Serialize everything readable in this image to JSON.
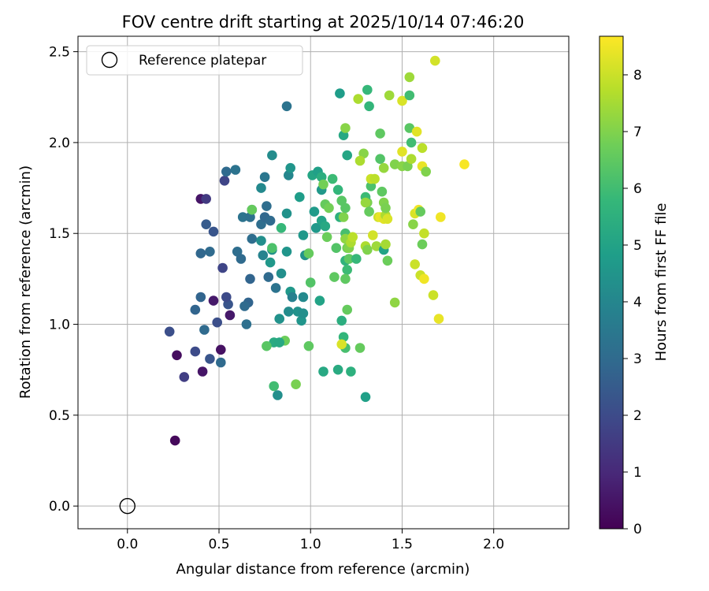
{
  "chart_data": {
    "type": "scatter",
    "title": "FOV centre drift starting at 2025/10/14 07:46:20",
    "xlabel": "Angular distance from reference (arcmin)",
    "ylabel": "Rotation from reference (arcmin)",
    "xlim": [
      -0.27,
      2.41
    ],
    "ylim": [
      -0.125,
      2.585
    ],
    "xticks": [
      0.0,
      0.5,
      1.0,
      1.5,
      2.0
    ],
    "xtick_labels": [
      "0.0",
      "0.5",
      "1.0",
      "1.5",
      "2.0"
    ],
    "yticks": [
      0.0,
      0.5,
      1.0,
      1.5,
      2.0,
      2.5
    ],
    "ytick_labels": [
      "0.0",
      "0.5",
      "1.0",
      "1.5",
      "2.0",
      "2.5"
    ],
    "grid": true,
    "legend": {
      "position": "top-left",
      "entries": [
        {
          "label": "Reference platepar",
          "marker": "open-circle"
        }
      ]
    },
    "reference_point": {
      "x": 0.0,
      "y": 0.0
    },
    "colorbar": {
      "label": "Hours from first FF file",
      "range": [
        0,
        8.68
      ],
      "ticks": [
        0,
        1,
        2,
        3,
        4,
        5,
        6,
        7,
        8
      ],
      "tick_labels": [
        "0",
        "1",
        "2",
        "3",
        "4",
        "5",
        "6",
        "7",
        "8"
      ],
      "colormap": [
        "#440154",
        "#482878",
        "#3e4989",
        "#31688e",
        "#26828e",
        "#1f9e89",
        "#35b779",
        "#6ece58",
        "#b5de2b",
        "#fde725"
      ]
    },
    "series": [
      {
        "name": "FOV centre",
        "points": [
          [
            0.26,
            0.36,
            0.2
          ],
          [
            0.27,
            0.83,
            0.3
          ],
          [
            0.31,
            0.71,
            1.6
          ],
          [
            0.23,
            0.96,
            2.1
          ],
          [
            0.37,
            0.85,
            2.0
          ],
          [
            0.41,
            0.74,
            0.5
          ],
          [
            0.45,
            0.81,
            2.3
          ],
          [
            0.51,
            0.86,
            0.4
          ],
          [
            0.51,
            0.79,
            3.0
          ],
          [
            0.42,
            0.97,
            3.0
          ],
          [
            0.49,
            1.01,
            2.1
          ],
          [
            0.37,
            1.08,
            2.8
          ],
          [
            0.4,
            1.15,
            2.8
          ],
          [
            0.47,
            1.13,
            0.6
          ],
          [
            0.55,
            1.11,
            2.3
          ],
          [
            0.56,
            1.05,
            0.6
          ],
          [
            0.54,
            1.15,
            2.0
          ],
          [
            0.65,
            1.0,
            3.2
          ],
          [
            0.66,
            1.12,
            2.8
          ],
          [
            0.64,
            1.1,
            3.0
          ],
          [
            0.67,
            1.25,
            2.8
          ],
          [
            0.52,
            1.31,
            1.8
          ],
          [
            0.4,
            1.39,
            2.9
          ],
          [
            0.45,
            1.4,
            3.0
          ],
          [
            0.47,
            1.51,
            2.3
          ],
          [
            0.43,
            1.55,
            2.5
          ],
          [
            0.4,
            1.69,
            0.5
          ],
          [
            0.43,
            1.69,
            1.5
          ],
          [
            0.53,
            1.79,
            1.8
          ],
          [
            0.54,
            1.84,
            3.0
          ],
          [
            0.59,
            1.85,
            3.3
          ],
          [
            0.6,
            1.4,
            3.1
          ],
          [
            0.62,
            1.36,
            3.0
          ],
          [
            0.63,
            1.59,
            3.3
          ],
          [
            0.67,
            1.59,
            3.2
          ],
          [
            0.68,
            1.63,
            3.4
          ],
          [
            0.68,
            1.47,
            3.1
          ],
          [
            0.73,
            1.55,
            3.1
          ],
          [
            0.75,
            1.59,
            2.9
          ],
          [
            0.76,
            1.65,
            3.1
          ],
          [
            0.78,
            1.57,
            3.0
          ],
          [
            0.73,
            1.75,
            4.1
          ],
          [
            0.75,
            1.81,
            3.4
          ],
          [
            0.79,
            1.93,
            4.2
          ],
          [
            0.87,
            2.2,
            3.3
          ],
          [
            0.73,
            1.46,
            4.3
          ],
          [
            0.74,
            1.38,
            3.9
          ],
          [
            0.77,
            1.26,
            3.0
          ],
          [
            0.78,
            1.34,
            4.6
          ],
          [
            0.79,
            1.41,
            4.4
          ],
          [
            0.81,
            1.2,
            3.3
          ],
          [
            0.84,
            1.28,
            4.3
          ],
          [
            0.87,
            1.4,
            4.5
          ],
          [
            0.87,
            1.61,
            4.4
          ],
          [
            0.88,
            1.82,
            4.0
          ],
          [
            0.89,
            1.86,
            4.5
          ],
          [
            0.83,
            1.03,
            4.4
          ],
          [
            0.88,
            1.07,
            4.2
          ],
          [
            0.89,
            1.18,
            4.6
          ],
          [
            0.9,
            1.15,
            3.8
          ],
          [
            0.93,
            1.07,
            4.4
          ],
          [
            0.95,
            1.02,
            4.5
          ],
          [
            0.96,
            1.06,
            4.3
          ],
          [
            0.96,
            1.15,
            4.1
          ],
          [
            0.94,
            1.7,
            4.8
          ],
          [
            0.96,
            1.49,
            4.6
          ],
          [
            0.97,
            1.38,
            4.4
          ],
          [
            0.99,
            1.39,
            6.6
          ],
          [
            1.0,
            1.23,
            6.3
          ],
          [
            1.01,
            1.82,
            5.1
          ],
          [
            1.02,
            1.62,
            4.7
          ],
          [
            1.03,
            1.53,
            4.6
          ],
          [
            1.04,
            1.84,
            4.9
          ],
          [
            1.05,
            1.13,
            5.0
          ],
          [
            1.06,
            1.81,
            5.4
          ],
          [
            1.06,
            1.74,
            4.6
          ],
          [
            1.06,
            1.57,
            5.0
          ],
          [
            1.08,
            1.54,
            5.2
          ],
          [
            1.07,
            1.77,
            6.8
          ],
          [
            1.08,
            1.66,
            6.6
          ],
          [
            1.09,
            1.48,
            6.7
          ],
          [
            1.1,
            1.64,
            6.8
          ],
          [
            1.12,
            1.8,
            5.9
          ],
          [
            1.13,
            1.26,
            6.5
          ],
          [
            1.14,
            1.42,
            6.3
          ],
          [
            1.15,
            1.74,
            5.7
          ],
          [
            1.16,
            1.59,
            5.5
          ],
          [
            1.17,
            1.68,
            6.4
          ],
          [
            1.18,
            1.59,
            7.0
          ],
          [
            1.19,
            1.64,
            6.4
          ],
          [
            1.19,
            1.5,
            6.1
          ],
          [
            1.19,
            1.35,
            5.6
          ],
          [
            1.2,
            1.3,
            5.9
          ],
          [
            1.19,
            1.25,
            6.5
          ],
          [
            1.2,
            1.42,
            6.8
          ],
          [
            1.21,
            1.42,
            7.0
          ],
          [
            1.21,
            1.36,
            6.5
          ],
          [
            1.19,
            1.47,
            7.2
          ],
          [
            1.22,
            1.45,
            7.6
          ],
          [
            1.23,
            1.48,
            7.8
          ],
          [
            1.25,
            1.36,
            5.8
          ],
          [
            1.15,
            0.75,
            5.3
          ],
          [
            1.17,
            1.02,
            5.4
          ],
          [
            1.18,
            0.93,
            5.7
          ],
          [
            1.19,
            0.87,
            6.1
          ],
          [
            1.17,
            0.89,
            8.2
          ],
          [
            1.2,
            1.08,
            6.6
          ],
          [
            1.07,
            0.74,
            5.2
          ],
          [
            1.22,
            0.74,
            5.5
          ],
          [
            1.3,
            0.6,
            4.9
          ],
          [
            1.27,
            0.87,
            6.6
          ],
          [
            1.3,
            1.43,
            7.6
          ],
          [
            1.31,
            1.41,
            7.0
          ],
          [
            1.31,
            1.67,
            6.9
          ],
          [
            1.3,
            1.7,
            5.9
          ],
          [
            1.3,
            1.67,
            7.3
          ],
          [
            1.32,
            1.62,
            6.6
          ],
          [
            1.33,
            1.76,
            6.2
          ],
          [
            1.33,
            1.8,
            8.0
          ],
          [
            1.35,
            1.8,
            7.8
          ],
          [
            1.34,
            1.49,
            8.1
          ],
          [
            1.36,
            1.43,
            7.4
          ],
          [
            1.37,
            1.59,
            8.0
          ],
          [
            1.38,
            1.59,
            8.4
          ],
          [
            1.39,
            1.73,
            6.5
          ],
          [
            1.4,
            1.58,
            8.3
          ],
          [
            1.4,
            1.41,
            5.0
          ],
          [
            1.4,
            1.67,
            7.0
          ],
          [
            1.41,
            1.6,
            7.6
          ],
          [
            1.41,
            1.44,
            7.5
          ],
          [
            1.42,
            1.35,
            6.7
          ],
          [
            1.41,
            1.64,
            6.9
          ],
          [
            1.42,
            1.58,
            8.2
          ],
          [
            1.46,
            1.12,
            7.2
          ],
          [
            1.16,
            2.27,
            4.8
          ],
          [
            1.18,
            2.04,
            5.2
          ],
          [
            1.19,
            2.08,
            7.1
          ],
          [
            1.2,
            1.93,
            5.1
          ],
          [
            1.29,
            1.94,
            7.1
          ],
          [
            1.27,
            1.9,
            7.6
          ],
          [
            1.26,
            2.24,
            7.6
          ],
          [
            1.31,
            2.29,
            5.8
          ],
          [
            1.32,
            2.2,
            5.7
          ],
          [
            1.38,
            2.05,
            6.5
          ],
          [
            1.38,
            1.91,
            6.3
          ],
          [
            1.4,
            1.86,
            7.3
          ],
          [
            1.43,
            2.26,
            7.4
          ],
          [
            1.46,
            1.88,
            7.0
          ],
          [
            1.5,
            1.87,
            7.1
          ],
          [
            1.5,
            2.23,
            8.2
          ],
          [
            1.5,
            1.95,
            8.3
          ],
          [
            1.53,
            1.87,
            6.9
          ],
          [
            1.54,
            2.36,
            7.4
          ],
          [
            1.54,
            2.26,
            6.0
          ],
          [
            1.54,
            2.08,
            6.4
          ],
          [
            1.55,
            2.0,
            6.0
          ],
          [
            1.55,
            1.91,
            7.6
          ],
          [
            1.56,
            1.55,
            7.1
          ],
          [
            1.57,
            1.61,
            8.2
          ],
          [
            1.57,
            1.33,
            8.0
          ],
          [
            1.58,
            2.06,
            8.3
          ],
          [
            1.59,
            1.63,
            8.5
          ],
          [
            1.6,
            1.62,
            6.6
          ],
          [
            1.6,
            1.27,
            8.0
          ],
          [
            1.61,
            1.87,
            8.4
          ],
          [
            1.61,
            1.97,
            7.8
          ],
          [
            1.61,
            1.44,
            6.7
          ],
          [
            1.62,
            1.5,
            7.9
          ],
          [
            1.62,
            1.25,
            8.5
          ],
          [
            1.63,
            1.84,
            7.0
          ],
          [
            1.67,
            1.16,
            8.0
          ],
          [
            1.68,
            2.45,
            8.1
          ],
          [
            1.7,
            1.03,
            8.4
          ],
          [
            1.71,
            1.59,
            8.5
          ],
          [
            1.84,
            1.88,
            8.6
          ],
          [
            0.86,
            0.91,
            6.7
          ],
          [
            0.8,
            0.9,
            5.3
          ],
          [
            0.83,
            0.9,
            5.2
          ],
          [
            0.76,
            0.88,
            6.4
          ],
          [
            0.8,
            0.66,
            6.0
          ],
          [
            0.82,
            0.61,
            4.3
          ],
          [
            0.92,
            0.67,
            6.9
          ],
          [
            0.99,
            0.88,
            6.5
          ],
          [
            0.79,
            1.42,
            6.2
          ],
          [
            0.84,
            1.53,
            5.8
          ],
          [
            0.68,
            1.63,
            6.6
          ]
        ]
      }
    ]
  }
}
